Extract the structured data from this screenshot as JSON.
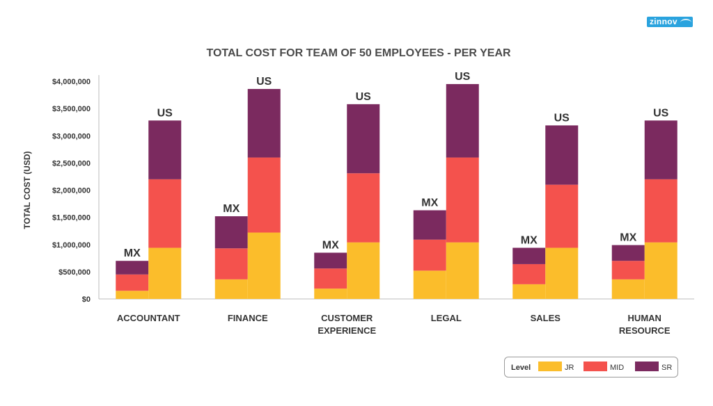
{
  "logo": {
    "text": "zinnov"
  },
  "chart_data": {
    "type": "bar",
    "stacked": true,
    "title": "TOTAL COST FOR TEAM OF 50 EMPLOYEES - PER YEAR",
    "xlabel": "",
    "ylabel": "TOTAL COST (USD)",
    "ylim": [
      0,
      4000000
    ],
    "yticks": [
      0,
      500000,
      1000000,
      1500000,
      2000000,
      2500000,
      3000000,
      3500000,
      4000000
    ],
    "ytick_labels": [
      "$0",
      "$500,000",
      "$1,000,000",
      "$1,500,000",
      "$2,000,000",
      "$2,500,000",
      "$3,000,000",
      "$3,500,000",
      "$4,000,000"
    ],
    "grid": false,
    "categories": [
      [
        "ACCOUNTANT"
      ],
      [
        "FINANCE"
      ],
      [
        "CUSTOMER",
        "EXPERIENCE"
      ],
      [
        "LEGAL"
      ],
      [
        "SALES"
      ],
      [
        "HUMAN",
        "RESOURCE"
      ]
    ],
    "bar_groups": [
      "MX",
      "US"
    ],
    "series": [
      {
        "name": "JR",
        "color": "#fbbd2b",
        "values": {
          "MX": [
            150000,
            360000,
            190000,
            520000,
            270000,
            360000
          ],
          "US": [
            940000,
            1220000,
            1040000,
            1040000,
            940000,
            1040000
          ]
        }
      },
      {
        "name": "MID",
        "color": "#f4524d",
        "values": {
          "MX": [
            300000,
            570000,
            370000,
            570000,
            370000,
            340000
          ],
          "US": [
            1260000,
            1380000,
            1270000,
            1560000,
            1160000,
            1160000
          ]
        }
      },
      {
        "name": "SR",
        "color": "#7b2a5f",
        "values": {
          "MX": [
            250000,
            590000,
            290000,
            540000,
            300000,
            290000
          ],
          "US": [
            1080000,
            1260000,
            1270000,
            1350000,
            1090000,
            1080000
          ]
        }
      }
    ],
    "legend": {
      "title": "Level",
      "placement": "bottom-right"
    }
  }
}
